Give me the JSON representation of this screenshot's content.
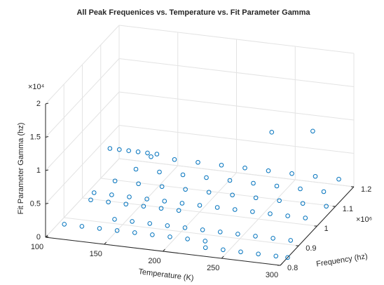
{
  "chart_data": {
    "type": "scatter",
    "title": "All Peak Frequenices vs. Temperature vs. Fit Parameter Gamma",
    "xlabel": "Temperature (K)",
    "ylabel": "Frequency (hz)",
    "zlabel": "Fit Parameter Gamma (hz)",
    "y_exponent": "×10⁶",
    "z_exponent": "×10⁴",
    "color": "#0072bd",
    "grid": true,
    "xlim": [
      100,
      300
    ],
    "xticks": [
      100,
      150,
      200,
      250,
      300
    ],
    "ylim": [
      800000,
      1200000
    ],
    "yticks": [
      {
        "value": 800000,
        "label": "0.8"
      },
      {
        "value": 900000,
        "label": "0.9"
      },
      {
        "value": 1000000,
        "label": "1"
      },
      {
        "value": 1100000,
        "label": "1.1"
      },
      {
        "value": 1200000,
        "label": "1.2"
      }
    ],
    "zlim": [
      0,
      20000
    ],
    "zticks": [
      0,
      {
        "value": 5000,
        "label": "0.5"
      },
      {
        "value": 10000,
        "label": "1"
      },
      {
        "value": 15000,
        "label": "1.5"
      },
      {
        "value": 20000,
        "label": "2"
      }
    ],
    "x": [
      230,
      245,
      260,
      275,
      290,
      300,
      105,
      120,
      135,
      150,
      165,
      180,
      195,
      210,
      225,
      140,
      155,
      170,
      185,
      200,
      215,
      230,
      245,
      260,
      275,
      290,
      115,
      130,
      145,
      160,
      175,
      190,
      110,
      125,
      140,
      155,
      170,
      185,
      200,
      215,
      230,
      245,
      260,
      275,
      290,
      120,
      140,
      160,
      180,
      200,
      220,
      240,
      260,
      280,
      300,
      130,
      150,
      170,
      190,
      210,
      230,
      250,
      270,
      290,
      135,
      155,
      175,
      195,
      215,
      235,
      255,
      275,
      295,
      100,
      108,
      116,
      124,
      132,
      140,
      230,
      265
    ],
    "y": [
      840000,
      840000,
      840000,
      840000,
      840000,
      840000,
      870000,
      870000,
      870000,
      870000,
      870000,
      870000,
      870000,
      870000,
      870000,
      920000,
      920000,
      920000,
      920000,
      920000,
      920000,
      920000,
      920000,
      920000,
      920000,
      920000,
      950000,
      950000,
      950000,
      950000,
      950000,
      950000,
      1000000,
      1000000,
      1000000,
      1000000,
      1000000,
      1000000,
      1000000,
      1000000,
      1000000,
      1000000,
      1000000,
      1000000,
      1000000,
      1050000,
      1050000,
      1050000,
      1050000,
      1050000,
      1050000,
      1050000,
      1050000,
      1050000,
      1050000,
      1100000,
      1100000,
      1100000,
      1100000,
      1100000,
      1100000,
      1100000,
      1100000,
      1100000,
      1150000,
      1150000,
      1150000,
      1150000,
      1150000,
      1150000,
      1150000,
      1150000,
      1150000,
      1150000,
      1150000,
      1150000,
      1150000,
      1150000,
      1150000,
      1200000,
      1200000
    ],
    "z": [
      0,
      0,
      0,
      0,
      0,
      0,
      0,
      0,
      0,
      0,
      0,
      0,
      0,
      0,
      0,
      0,
      0,
      0,
      0,
      0,
      0,
      0,
      0,
      0,
      0,
      0,
      1500,
      1500,
      1500,
      1500,
      1500,
      1500,
      1000,
      1000,
      1000,
      1000,
      1000,
      1000,
      1000,
      1000,
      1000,
      1000,
      1000,
      1000,
      1000,
      1500,
      1500,
      1500,
      1500,
      1500,
      1500,
      1500,
      1500,
      1500,
      1500,
      2000,
      2000,
      2000,
      2000,
      2000,
      2000,
      2000,
      2000,
      2000,
      2500,
      2500,
      2500,
      2500,
      2500,
      2500,
      2500,
      2500,
      2500,
      3000,
      3000,
      3000,
      3000,
      3000,
      3000,
      6700,
      7600
    ]
  }
}
